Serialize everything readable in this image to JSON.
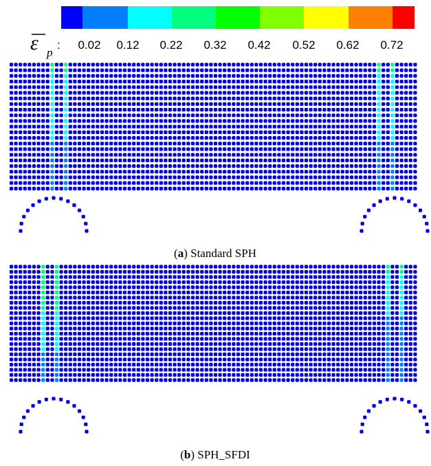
{
  "colorbar": {
    "colors": [
      "#0000ff",
      "#0080ff",
      "#00ffff",
      "#00ff80",
      "#00ff00",
      "#80ff00",
      "#ffff00",
      "#ff8000",
      "#ff0000"
    ],
    "tick_labels": [
      "0.02",
      "0.12",
      "0.22",
      "0.32",
      "0.42",
      "0.52",
      "0.62",
      "0.72"
    ],
    "symbol_base": "ε",
    "symbol_sub": "p",
    "separator": ":"
  },
  "panels": [
    {
      "caption_letter": "a",
      "caption_text": " Standard SPH"
    },
    {
      "caption_letter": "b",
      "caption_text": " SPH_SFDI"
    }
  ],
  "particle_colors": {
    "base": "#0000e0",
    "light_blue": "#0080ff",
    "cyan": "#00ffff",
    "green": "#00ff80"
  }
}
